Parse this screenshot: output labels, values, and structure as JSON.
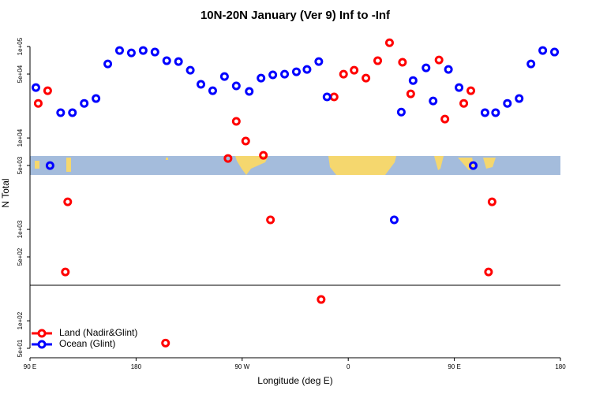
{
  "chart_data": {
    "type": "scatter",
    "title": "10N-20N January (Ver 9)   Inf to -Inf",
    "x_label": "Longitude (deg E)",
    "y_label": "N Total",
    "log_y": true,
    "xlim": [
      90,
      540
    ],
    "xticks": [
      {
        "value": 90,
        "label": "90 E"
      },
      180,
      {
        "value": 270,
        "label": "90 W"
      },
      {
        "value": 360,
        "label": "0"
      },
      {
        "value": 450,
        "label": "90 E"
      },
      {
        "value": 540,
        "label": "180"
      }
    ],
    "ylim": [
      41,
      152000
    ],
    "yticks": [
      {
        "value": 50,
        "label": "5e+01"
      },
      {
        "value": 100,
        "label": "1e+02"
      },
      {
        "value": 500,
        "label": "5e+02"
      },
      {
        "value": 1000,
        "label": "1e+03"
      },
      {
        "value": 5000,
        "label": "5e+03"
      },
      {
        "value": 10000,
        "label": "1e+04"
      },
      {
        "value": 50000,
        "label": "5e+04"
      },
      {
        "value": 100000,
        "label": "1e+05"
      }
    ],
    "reference_line": 245,
    "legend_position": "bottom-left",
    "series": [
      {
        "name": "Land (Nadir&Glint)",
        "color": "#ff0000",
        "x": [
          97,
          105,
          122,
          120,
          205,
          258,
          265,
          273,
          288,
          294,
          337,
          348,
          356,
          365,
          375,
          385,
          395,
          406,
          413,
          437,
          442,
          458,
          464,
          482,
          479
        ],
        "values": [
          23900,
          32900,
          2000,
          342,
          57,
          5970,
          15200,
          9250,
          6460,
          1270,
          171,
          28100,
          49900,
          55100,
          45200,
          70000,
          110000,
          67300,
          30400,
          71300,
          16100,
          23900,
          32900,
          2000,
          342
        ]
      },
      {
        "name": "Ocean (Glint)",
        "color": "#0000ff",
        "x": [
          95,
          107,
          116,
          126,
          136,
          146,
          156,
          166,
          176,
          186,
          196,
          206,
          216,
          226,
          235,
          245,
          255,
          265,
          276,
          286,
          296,
          306,
          316,
          325,
          335,
          342,
          399,
          405,
          415,
          426,
          432,
          445,
          454,
          466,
          476,
          485,
          495,
          505,
          515,
          525,
          535
        ],
        "values": [
          35600,
          4990,
          18900,
          18900,
          23900,
          27000,
          64600,
          90600,
          85300,
          90600,
          87100,
          70000,
          68500,
          55100,
          38600,
          32900,
          47000,
          37100,
          32300,
          45200,
          49000,
          49900,
          53000,
          56200,
          68500,
          28100,
          1270,
          19200,
          42500,
          58500,
          25400,
          56200,
          35600,
          4990,
          18900,
          18900,
          23900,
          27000,
          64600,
          90600,
          87100
        ]
      }
    ]
  }
}
